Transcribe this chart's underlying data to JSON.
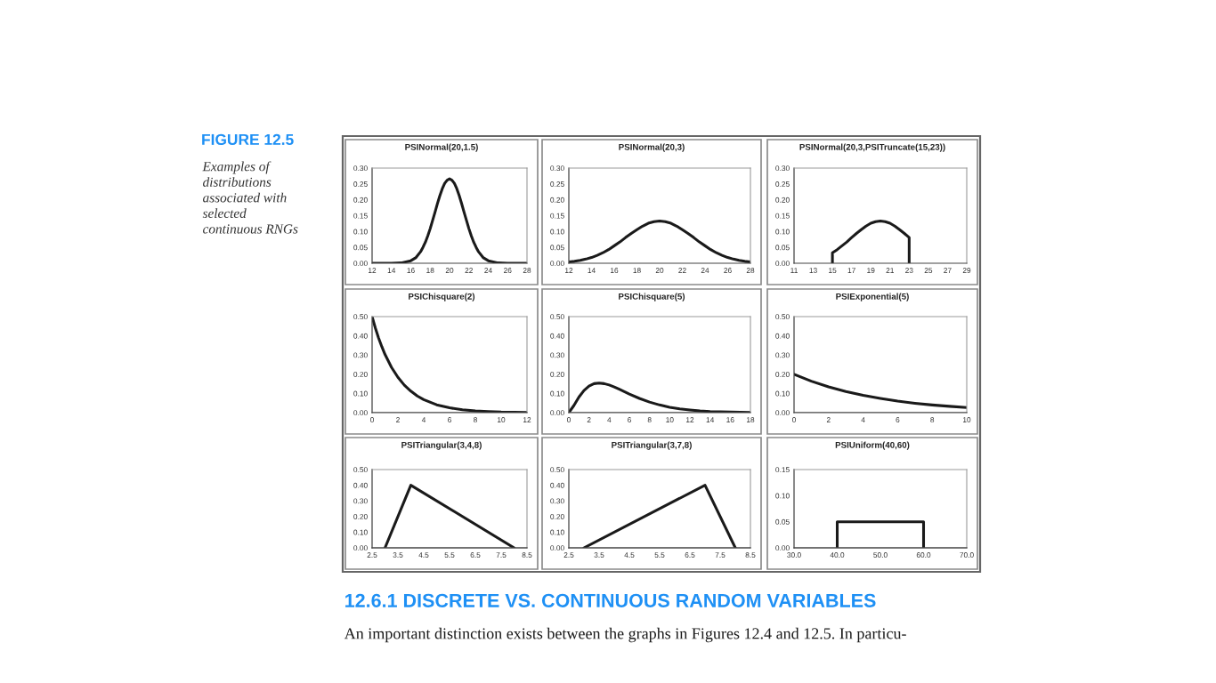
{
  "chart_data": [
    {
      "type": "other",
      "title": "FIGURE 12.5",
      "subtitle": "Examples of distributions associated with selected continuous RNGs"
    },
    {
      "type": "line",
      "title": "PSINormal(20,1.5)",
      "color": "#1a1a1a",
      "x": [
        12,
        14,
        15,
        16,
        16.5,
        17,
        17.25,
        17.5,
        17.75,
        18,
        18.25,
        18.5,
        18.75,
        19,
        19.25,
        19.5,
        19.75,
        20,
        20.25,
        20.5,
        20.75,
        21,
        21.25,
        21.5,
        21.75,
        22,
        22.25,
        22.5,
        22.75,
        23,
        23.5,
        24,
        25,
        26,
        28
      ],
      "values": [
        0,
        0,
        0.001,
        0.008,
        0.017,
        0.036,
        0.05,
        0.066,
        0.086,
        0.109,
        0.135,
        0.161,
        0.188,
        0.213,
        0.235,
        0.252,
        0.262,
        0.266,
        0.262,
        0.252,
        0.235,
        0.213,
        0.188,
        0.161,
        0.135,
        0.109,
        0.086,
        0.066,
        0.05,
        0.036,
        0.017,
        0.008,
        0.001,
        0,
        0
      ],
      "xlim": [
        12,
        28
      ],
      "xticks": [
        12,
        14,
        16,
        18,
        20,
        22,
        24,
        26,
        28
      ],
      "ylim": [
        0,
        0.3
      ],
      "yticks": [
        {
          "value": 0,
          "label": "0.00"
        },
        {
          "value": 0.05,
          "label": "0.05"
        },
        {
          "value": 0.1,
          "label": "0.10"
        },
        {
          "value": 0.15,
          "label": "0.15"
        },
        {
          "value": 0.2,
          "label": "0.20"
        },
        {
          "value": 0.25,
          "label": "0.25"
        },
        {
          "value": 0.3,
          "label": "0.30"
        }
      ]
    },
    {
      "type": "line",
      "title": "PSINormal(20,3)",
      "color": "#1a1a1a",
      "x": [
        12,
        12.5,
        13,
        13.5,
        14,
        14.5,
        15,
        15.5,
        16,
        16.5,
        17,
        17.5,
        18,
        18.5,
        19,
        19.5,
        20,
        20.5,
        21,
        21.5,
        22,
        22.5,
        23,
        23.5,
        24,
        24.5,
        25,
        25.5,
        26,
        26.5,
        27,
        27.5,
        28
      ],
      "values": [
        0.004,
        0.006,
        0.009,
        0.013,
        0.018,
        0.025,
        0.033,
        0.043,
        0.055,
        0.067,
        0.081,
        0.094,
        0.106,
        0.117,
        0.126,
        0.131,
        0.133,
        0.131,
        0.126,
        0.117,
        0.106,
        0.094,
        0.081,
        0.067,
        0.055,
        0.043,
        0.033,
        0.025,
        0.018,
        0.013,
        0.009,
        0.006,
        0.004
      ],
      "xlim": [
        12,
        28
      ],
      "xticks": [
        12,
        14,
        16,
        18,
        20,
        22,
        24,
        26,
        28
      ],
      "ylim": [
        0,
        0.3
      ],
      "yticks": [
        {
          "value": 0,
          "label": "0.00"
        },
        {
          "value": 0.05,
          "label": "0.05"
        },
        {
          "value": 0.1,
          "label": "0.10"
        },
        {
          "value": 0.15,
          "label": "0.15"
        },
        {
          "value": 0.2,
          "label": "0.20"
        },
        {
          "value": 0.25,
          "label": "0.25"
        },
        {
          "value": 0.3,
          "label": "0.30"
        }
      ]
    },
    {
      "type": "line",
      "title": "PSINormal(20,3,PSITruncate(15,23))",
      "color": "#1a1a1a",
      "x": [
        15,
        15,
        15.5,
        16,
        16.5,
        17,
        17.5,
        18,
        18.5,
        19,
        19.5,
        20,
        20.5,
        21,
        21.5,
        22,
        22.5,
        23,
        23
      ],
      "values": [
        0,
        0.033,
        0.043,
        0.055,
        0.067,
        0.081,
        0.094,
        0.106,
        0.117,
        0.126,
        0.131,
        0.133,
        0.131,
        0.126,
        0.117,
        0.106,
        0.094,
        0.081,
        0
      ],
      "xlim": [
        11,
        29
      ],
      "xticks": [
        11,
        13,
        15,
        17,
        19,
        21,
        23,
        25,
        27,
        29
      ],
      "ylim": [
        0,
        0.3
      ],
      "yticks": [
        {
          "value": 0,
          "label": "0.00"
        },
        {
          "value": 0.05,
          "label": "0.05"
        },
        {
          "value": 0.1,
          "label": "0.10"
        },
        {
          "value": 0.15,
          "label": "0.15"
        },
        {
          "value": 0.2,
          "label": "0.20"
        },
        {
          "value": 0.25,
          "label": "0.25"
        },
        {
          "value": 0.3,
          "label": "0.30"
        }
      ]
    },
    {
      "type": "line",
      "title": "PSIChisquare(2)",
      "color": "#1a1a1a",
      "x": [
        0,
        0.25,
        0.5,
        0.75,
        1,
        1.5,
        2,
        2.5,
        3,
        3.5,
        4,
        5,
        6,
        7,
        8,
        9,
        10,
        11,
        12
      ],
      "values": [
        0.5,
        0.441,
        0.389,
        0.344,
        0.303,
        0.236,
        0.184,
        0.143,
        0.112,
        0.087,
        0.068,
        0.041,
        0.025,
        0.015,
        0.009,
        0.006,
        0.003,
        0.002,
        0.001
      ],
      "xlim": [
        0,
        12
      ],
      "xticks": [
        0,
        2,
        4,
        6,
        8,
        10,
        12
      ],
      "ylim": [
        0,
        0.5
      ],
      "yticks": [
        {
          "value": 0,
          "label": "0.00"
        },
        {
          "value": 0.1,
          "label": "0.10"
        },
        {
          "value": 0.2,
          "label": "0.20"
        },
        {
          "value": 0.3,
          "label": "0.30"
        },
        {
          "value": 0.4,
          "label": "0.40"
        },
        {
          "value": 0.5,
          "label": "0.50"
        }
      ]
    },
    {
      "type": "line",
      "title": "PSIChisquare(5)",
      "color": "#1a1a1a",
      "x": [
        0,
        0.5,
        1,
        1.5,
        2,
        2.5,
        3,
        3.5,
        4,
        4.5,
        5,
        6,
        7,
        8,
        9,
        10,
        11,
        12,
        13,
        14,
        16,
        18
      ],
      "values": [
        0,
        0.037,
        0.081,
        0.115,
        0.138,
        0.151,
        0.154,
        0.151,
        0.144,
        0.134,
        0.122,
        0.097,
        0.074,
        0.055,
        0.04,
        0.028,
        0.02,
        0.014,
        0.009,
        0.006,
        0.003,
        0.001
      ],
      "xlim": [
        0,
        18
      ],
      "xticks": [
        0,
        2,
        4,
        6,
        8,
        10,
        12,
        14,
        16,
        18
      ],
      "ylim": [
        0,
        0.5
      ],
      "yticks": [
        {
          "value": 0,
          "label": "0.00"
        },
        {
          "value": 0.1,
          "label": "0.10"
        },
        {
          "value": 0.2,
          "label": "0.20"
        },
        {
          "value": 0.3,
          "label": "0.30"
        },
        {
          "value": 0.4,
          "label": "0.40"
        },
        {
          "value": 0.5,
          "label": "0.50"
        }
      ]
    },
    {
      "type": "line",
      "title": "PSIExponential(5)",
      "color": "#1a1a1a",
      "x": [
        0,
        1,
        2,
        3,
        4,
        5,
        6,
        7,
        8,
        9,
        10
      ],
      "values": [
        0.2,
        0.164,
        0.134,
        0.11,
        0.09,
        0.074,
        0.06,
        0.049,
        0.04,
        0.033,
        0.027
      ],
      "xlim": [
        0,
        10
      ],
      "xticks": [
        0,
        2,
        4,
        6,
        8,
        10
      ],
      "ylim": [
        0,
        0.5
      ],
      "yticks": [
        {
          "value": 0,
          "label": "0.00"
        },
        {
          "value": 0.1,
          "label": "0.10"
        },
        {
          "value": 0.2,
          "label": "0.20"
        },
        {
          "value": 0.3,
          "label": "0.30"
        },
        {
          "value": 0.4,
          "label": "0.40"
        },
        {
          "value": 0.5,
          "label": "0.50"
        }
      ]
    },
    {
      "type": "line",
      "title": "PSITriangular(3,4,8)",
      "color": "#1a1a1a",
      "x": [
        3,
        4,
        8
      ],
      "values": [
        0,
        0.4,
        0
      ],
      "xlim": [
        2.5,
        8.5
      ],
      "xticks": [
        2.5,
        3.5,
        4.5,
        5.5,
        6.5,
        7.5,
        8.5
      ],
      "ylim": [
        0,
        0.5
      ],
      "yticks": [
        {
          "value": 0,
          "label": "0.00"
        },
        {
          "value": 0.1,
          "label": "0.10"
        },
        {
          "value": 0.2,
          "label": "0.20"
        },
        {
          "value": 0.3,
          "label": "0.30"
        },
        {
          "value": 0.4,
          "label": "0.40"
        },
        {
          "value": 0.5,
          "label": "0.50"
        }
      ]
    },
    {
      "type": "line",
      "title": "PSITriangular(3,7,8)",
      "color": "#1a1a1a",
      "x": [
        3,
        7,
        8
      ],
      "values": [
        0,
        0.4,
        0
      ],
      "xlim": [
        2.5,
        8.5
      ],
      "xticks": [
        2.5,
        3.5,
        4.5,
        5.5,
        6.5,
        7.5,
        8.5
      ],
      "ylim": [
        0,
        0.5
      ],
      "yticks": [
        {
          "value": 0,
          "label": "0.00"
        },
        {
          "value": 0.1,
          "label": "0.10"
        },
        {
          "value": 0.2,
          "label": "0.20"
        },
        {
          "value": 0.3,
          "label": "0.30"
        },
        {
          "value": 0.4,
          "label": "0.40"
        },
        {
          "value": 0.5,
          "label": "0.50"
        }
      ]
    },
    {
      "type": "line",
      "title": "PSIUniform(40,60)",
      "color": "#1a1a1a",
      "x": [
        40,
        40,
        60,
        60
      ],
      "values": [
        0,
        0.05,
        0.05,
        0
      ],
      "xlim": [
        30,
        70
      ],
      "xticks": [
        {
          "value": 30,
          "label": "30.0"
        },
        {
          "value": 40,
          "label": "40.0"
        },
        {
          "value": 50,
          "label": "50.0"
        },
        {
          "value": 60,
          "label": "60.0"
        },
        {
          "value": 70,
          "label": "70.0"
        }
      ],
      "ylim": [
        0,
        0.15
      ],
      "yticks": [
        {
          "value": 0,
          "label": "0.00"
        },
        {
          "value": 0.05,
          "label": "0.05"
        },
        {
          "value": 0.1,
          "label": "0.10"
        },
        {
          "value": 0.15,
          "label": "0.15"
        }
      ]
    },
    {
      "type": "other",
      "title": "12.6.1 DISCRETE VS. CONTINUOUS RANDOM VARIABLES",
      "annotations": [
        "An important distinction exists between the graphs in Figures 12.4 and 12.5. In particu-"
      ]
    }
  ]
}
